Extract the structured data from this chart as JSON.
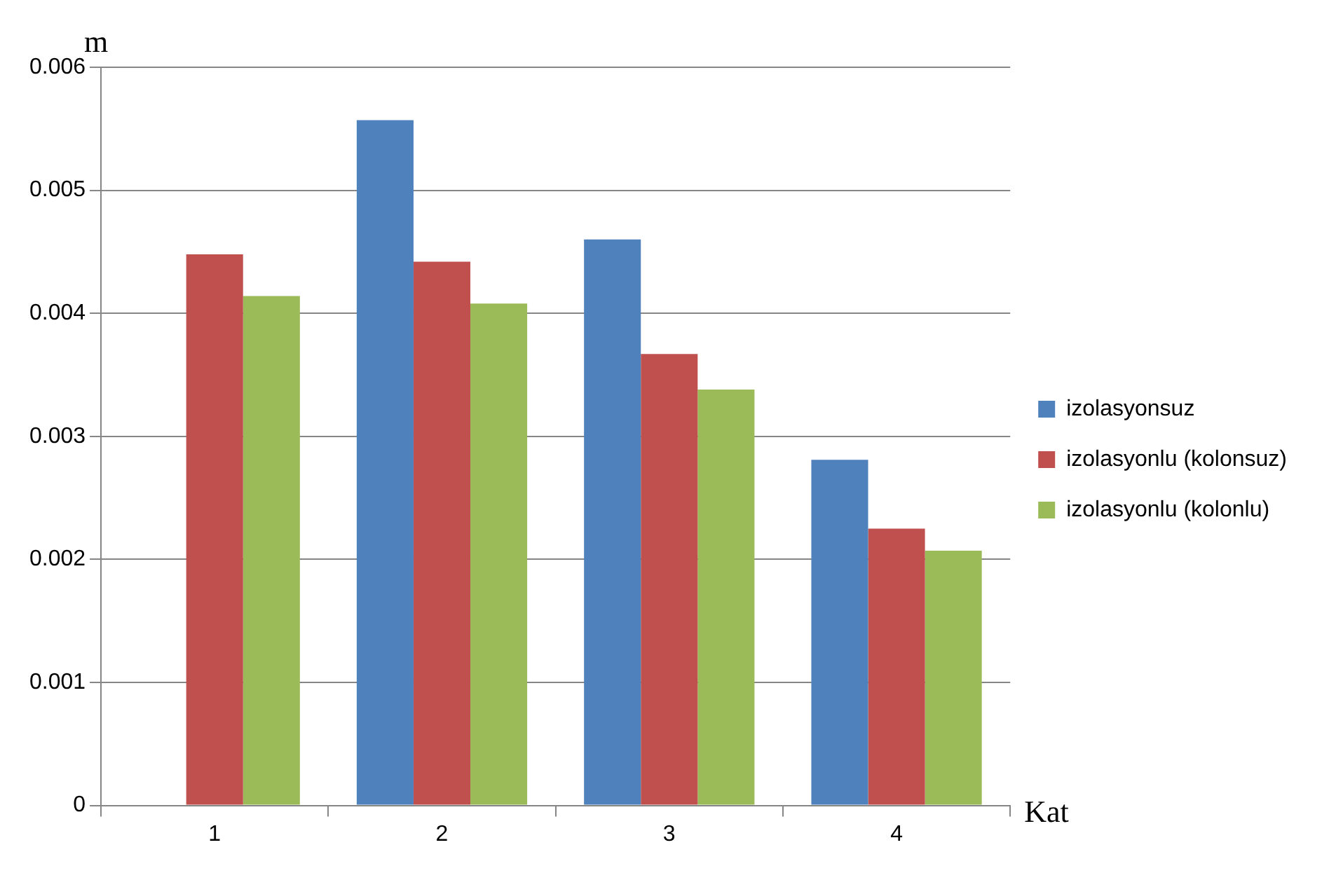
{
  "chart_data": {
    "type": "bar",
    "xlabel": "Kat",
    "ylabel": "m",
    "categories": [
      "1",
      "2",
      "3",
      "4"
    ],
    "series": [
      {
        "name": "izolasyonsuz",
        "color": "#4f81bd",
        "values": [
          null,
          0.00557,
          0.0046,
          0.00281
        ]
      },
      {
        "name": "izolasyonlu (kolonsuz)",
        "color": "#c0504d",
        "values": [
          0.00448,
          0.00442,
          0.00367,
          0.00225
        ]
      },
      {
        "name": "izolasyonlu (kolonlu)",
        "color": "#9bbb59",
        "values": [
          0.00414,
          0.00408,
          0.00338,
          0.00207
        ]
      }
    ],
    "ylim": [
      0,
      0.006
    ],
    "yticks": [
      0,
      0.001,
      0.002,
      0.003,
      0.004,
      0.005,
      0.006
    ],
    "grid": "y",
    "legend": "right"
  }
}
